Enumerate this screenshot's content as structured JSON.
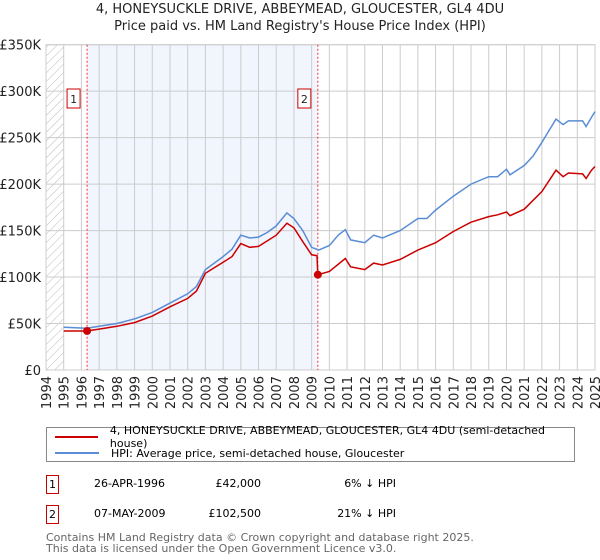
{
  "chart_data": {
    "type": "line",
    "title": "4, HONEYSUCKLE DRIVE, ABBEYMEAD, GLOUCESTER, GL4 4DU",
    "subtitle": "Price paid vs. HM Land Registry's House Price Index (HPI)",
    "xlim": [
      1994,
      2025
    ],
    "ylim": [
      0,
      350000
    ],
    "grid": true,
    "y_ticks": [
      {
        "value": 0,
        "label": "£0"
      },
      {
        "value": 50000,
        "label": "£50K"
      },
      {
        "value": 100000,
        "label": "£100K"
      },
      {
        "value": 150000,
        "label": "£150K"
      },
      {
        "value": 200000,
        "label": "£200K"
      },
      {
        "value": 250000,
        "label": "£250K"
      },
      {
        "value": 300000,
        "label": "£300K"
      },
      {
        "value": 350000,
        "label": "£350K"
      }
    ],
    "x_ticks": [
      "1994",
      "1995",
      "1996",
      "1997",
      "1998",
      "1999",
      "2000",
      "2001",
      "2002",
      "2003",
      "2004",
      "2005",
      "2006",
      "2007",
      "2008",
      "2009",
      "2010",
      "2011",
      "2012",
      "2013",
      "2014",
      "2015",
      "2016",
      "2017",
      "2018",
      "2019",
      "2020",
      "2021",
      "2022",
      "2023",
      "2024",
      "2025"
    ],
    "shaded_range": [
      1996.32,
      2009.35
    ],
    "hatched_range": [
      1994,
      1995
    ],
    "series": [
      {
        "name": "4, HONEYSUCKLE DRIVE, ABBEYMEAD, GLOUCESTER, GL4 4DU (semi-detached house)",
        "color": "#cc0000",
        "points": [
          [
            1995,
            42000
          ],
          [
            1996.3,
            42000
          ],
          [
            1997,
            44000
          ],
          [
            1998,
            47000
          ],
          [
            1999,
            51000
          ],
          [
            2000,
            58000
          ],
          [
            2001,
            68000
          ],
          [
            2002,
            77000
          ],
          [
            2002.5,
            85000
          ],
          [
            2003,
            104000
          ],
          [
            2004,
            116000
          ],
          [
            2004.5,
            122000
          ],
          [
            2005,
            136000
          ],
          [
            2005.5,
            132000
          ],
          [
            2006,
            133000
          ],
          [
            2007,
            145000
          ],
          [
            2007.6,
            158000
          ],
          [
            2008,
            153000
          ],
          [
            2008.5,
            138000
          ],
          [
            2009,
            124000
          ],
          [
            2009.3,
            123000
          ],
          [
            2009.35,
            102500
          ],
          [
            2010,
            106000
          ],
          [
            2010.9,
            120000
          ],
          [
            2011.2,
            111000
          ],
          [
            2012,
            108000
          ],
          [
            2012.5,
            115000
          ],
          [
            2013,
            113000
          ],
          [
            2014,
            119000
          ],
          [
            2015,
            129000
          ],
          [
            2016,
            137000
          ],
          [
            2017,
            149000
          ],
          [
            2018,
            159000
          ],
          [
            2019,
            165000
          ],
          [
            2019.5,
            167000
          ],
          [
            2020,
            170000
          ],
          [
            2020.2,
            166000
          ],
          [
            2021,
            173000
          ],
          [
            2022,
            192000
          ],
          [
            2022.8,
            215000
          ],
          [
            2023.2,
            208000
          ],
          [
            2023.5,
            212000
          ],
          [
            2024.3,
            211000
          ],
          [
            2024.5,
            206000
          ],
          [
            2024.8,
            215000
          ],
          [
            2025,
            219000
          ]
        ]
      },
      {
        "name": "HPI: Average price, semi-detached house, Gloucester",
        "color": "#5b8dd6",
        "points": [
          [
            1995,
            46000
          ],
          [
            1996.3,
            45000
          ],
          [
            1997,
            47000
          ],
          [
            1998,
            50000
          ],
          [
            1999,
            55000
          ],
          [
            2000,
            62000
          ],
          [
            2001,
            72000
          ],
          [
            2002,
            82000
          ],
          [
            2002.5,
            90000
          ],
          [
            2003,
            108000
          ],
          [
            2004,
            122000
          ],
          [
            2004.5,
            130000
          ],
          [
            2005,
            145000
          ],
          [
            2005.5,
            142000
          ],
          [
            2006,
            143000
          ],
          [
            2006.5,
            148000
          ],
          [
            2007,
            155000
          ],
          [
            2007.6,
            169000
          ],
          [
            2008,
            163000
          ],
          [
            2008.5,
            150000
          ],
          [
            2009,
            132000
          ],
          [
            2009.4,
            129000
          ],
          [
            2010,
            134000
          ],
          [
            2010.5,
            145000
          ],
          [
            2010.9,
            151000
          ],
          [
            2011.2,
            140000
          ],
          [
            2012,
            137000
          ],
          [
            2012.5,
            145000
          ],
          [
            2013,
            142000
          ],
          [
            2014,
            150000
          ],
          [
            2015,
            163000
          ],
          [
            2015.5,
            163000
          ],
          [
            2016,
            172000
          ],
          [
            2017,
            187000
          ],
          [
            2018,
            200000
          ],
          [
            2019,
            208000
          ],
          [
            2019.5,
            208000
          ],
          [
            2020,
            216000
          ],
          [
            2020.2,
            210000
          ],
          [
            2021,
            220000
          ],
          [
            2021.5,
            230000
          ],
          [
            2022,
            245000
          ],
          [
            2022.8,
            270000
          ],
          [
            2023.2,
            264000
          ],
          [
            2023.5,
            268000
          ],
          [
            2024.3,
            268000
          ],
          [
            2024.5,
            262000
          ],
          [
            2024.8,
            272000
          ],
          [
            2025,
            278000
          ]
        ]
      }
    ],
    "annotations": [
      {
        "label": "1",
        "x": 1996.32,
        "y": 42000
      },
      {
        "label": "2",
        "x": 2009.35,
        "y": 102500
      }
    ]
  },
  "transactions": [
    {
      "num": "1",
      "date": "26-APR-1996",
      "price": "£42,000",
      "hpi": "6% ↓ HPI"
    },
    {
      "num": "2",
      "date": "07-MAY-2009",
      "price": "£102,500",
      "hpi": "21% ↓ HPI"
    }
  ],
  "footer": {
    "line1": "Contains HM Land Registry data © Crown copyright and database right 2025.",
    "line2": "This data is licensed under the Open Government Licence v3.0."
  }
}
